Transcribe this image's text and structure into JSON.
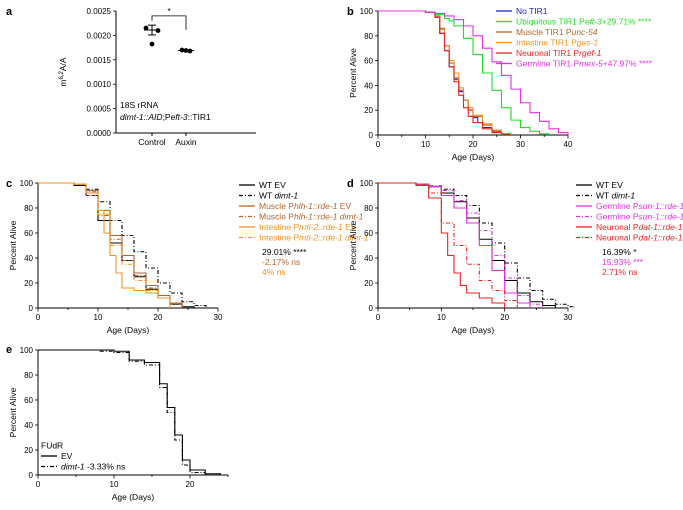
{
  "colors": {
    "black": "#000000",
    "blue": "#1f25c8",
    "green": "#27d92a",
    "brown": "#b5652c",
    "orange": "#f39322",
    "red": "#ee2222",
    "magenta": "#e331e0",
    "grey": "#555555"
  },
  "chart_data": [
    {
      "id": "a",
      "panel_label": "a",
      "type": "scatter",
      "ylabel": "m6,2A/A",
      "ylabel_base": "m",
      "ylabel_sup": "6,2",
      "ylabel_rest": "A/A",
      "ylim": [
        0,
        0.0025
      ],
      "yticks": [
        "0.0025",
        "0.0020",
        "0.0015",
        "0.0010",
        "0.0005",
        "0.0000"
      ],
      "ytick_values": [
        0.0025,
        0.002,
        0.0015,
        0.001,
        0.0005,
        0
      ],
      "categories": [
        "Control",
        "Auxin"
      ],
      "points": [
        [
          0.00215,
          0.0021,
          0.00182
        ],
        [
          0.0017,
          0.00169,
          0.00168
        ]
      ],
      "means": [
        0.00211,
        0.00169
      ],
      "sem": [
        0.0001,
        5e-06
      ],
      "significance": "*",
      "annotation_line1": "18S rRNA",
      "annotation_line2_italic": "dimt-1::AID",
      "annotation_line2_rest": ";Peft-3::TIR1",
      "annotation_line2_p": "P",
      "annotation_line2_eft": "eft-3",
      "annotation_line2_tail": "::TIR1"
    },
    {
      "id": "b",
      "panel_label": "b",
      "type": "line",
      "xlabel": "Age (Days)",
      "ylabel": "Percent Alive",
      "xlim": [
        0,
        40
      ],
      "ylim": [
        0,
        100
      ],
      "xticks": [
        0,
        10,
        20,
        30,
        40
      ],
      "yticks": [
        0,
        20,
        40,
        60,
        80,
        100
      ],
      "series": [
        {
          "name": "No TIR1",
          "color": "blue",
          "x": [
            0,
            10,
            12,
            13,
            14,
            15,
            16,
            17,
            18,
            19,
            20,
            21,
            22,
            24,
            26,
            28
          ],
          "y": [
            100,
            99,
            95,
            82,
            68,
            55,
            45,
            35,
            28,
            20,
            14,
            10,
            6,
            3,
            1,
            0
          ]
        },
        {
          "name": "Ubiquitous TIR1 Peft-3",
          "color": "green",
          "x": [
            0,
            10,
            12,
            14,
            15,
            16,
            18,
            20,
            22,
            24,
            26,
            28,
            30,
            32,
            34,
            36
          ],
          "y": [
            100,
            99,
            97,
            94,
            92,
            88,
            78,
            65,
            50,
            36,
            22,
            12,
            6,
            3,
            1,
            0
          ]
        },
        {
          "name": "Muscle TIR1 Punc-54",
          "color": "brown",
          "x": [
            0,
            10,
            12,
            13,
            14,
            15,
            16,
            17,
            18,
            19,
            20,
            22,
            24,
            26,
            28
          ],
          "y": [
            100,
            99,
            96,
            86,
            72,
            58,
            46,
            36,
            28,
            20,
            15,
            8,
            3,
            1,
            0
          ]
        },
        {
          "name": "Intestine TIR1 Pges-1",
          "color": "orange",
          "x": [
            0,
            10,
            12,
            13,
            14,
            15,
            16,
            17,
            18,
            19,
            20,
            22,
            24,
            26,
            28
          ],
          "y": [
            100,
            99,
            96,
            85,
            72,
            60,
            50,
            38,
            28,
            22,
            16,
            9,
            4,
            1,
            0
          ]
        },
        {
          "name": "Neuronal TIR1 Prgef-1",
          "color": "red",
          "x": [
            0,
            10,
            12,
            13,
            14,
            15,
            16,
            17,
            18,
            19,
            20,
            22,
            24,
            26
          ],
          "y": [
            100,
            99,
            95,
            82,
            68,
            55,
            43,
            32,
            22,
            15,
            10,
            5,
            2,
            0
          ]
        },
        {
          "name": "Germline TIR1 Pmex-5",
          "color": "magenta",
          "x": [
            0,
            10,
            12,
            14,
            16,
            18,
            20,
            22,
            24,
            26,
            28,
            30,
            32,
            34,
            36,
            38,
            40
          ],
          "y": [
            100,
            99,
            98,
            96,
            93,
            88,
            80,
            70,
            59,
            48,
            37,
            26,
            18,
            11,
            5,
            2,
            0
          ]
        }
      ],
      "legend": [
        {
          "pre": "No TIR1",
          "ital": "",
          "post": "",
          "stat": "",
          "color": "blue"
        },
        {
          "pre": "Ubiquitous TIR1 P",
          "ital": "eft-3",
          "post": "",
          "stat": "+29.71% ****",
          "color": "green"
        },
        {
          "pre": "Muscle TIR1 P",
          "ital": "unc-54",
          "post": "",
          "stat": "",
          "color": "brown"
        },
        {
          "pre": "Intestine TIR1 P",
          "ital": "ges-1",
          "post": "",
          "stat": "",
          "color": "orange"
        },
        {
          "pre": "Neuronal TIR1 P",
          "ital": "rgef-1",
          "post": "",
          "stat": "",
          "color": "red"
        },
        {
          "pre": "Germline TIR1 P",
          "ital": "mex-5",
          "post": "",
          "stat": "+47.97% ****",
          "color": "magenta"
        }
      ]
    },
    {
      "id": "c",
      "panel_label": "c",
      "type": "line",
      "xlabel": "Age (Days)",
      "ylabel": "Percent Alive",
      "xlim": [
        0,
        30
      ],
      "ylim": [
        0,
        100
      ],
      "xticks": [
        0,
        10,
        20,
        30
      ],
      "yticks": [
        0,
        20,
        40,
        60,
        80,
        100
      ],
      "series": [
        {
          "name": "WT EV",
          "color": "black",
          "dash": "",
          "x": [
            0,
            6,
            8,
            10,
            12,
            14,
            16,
            18,
            20,
            22,
            24,
            26
          ],
          "y": [
            100,
            98,
            90,
            70,
            52,
            38,
            25,
            15,
            8,
            3,
            1,
            0
          ]
        },
        {
          "name": "WT dimt-1",
          "color": "black",
          "dash": "4,2,1,2",
          "x": [
            0,
            6,
            8,
            10,
            12,
            14,
            16,
            18,
            20,
            22,
            24,
            26,
            28
          ],
          "y": [
            100,
            99,
            95,
            85,
            70,
            58,
            45,
            32,
            20,
            12,
            5,
            2,
            0
          ]
        },
        {
          "name": "Muscle Phlh-1::rde-1 EV",
          "color": "brown",
          "dash": "",
          "x": [
            0,
            6,
            8,
            10,
            12,
            14,
            16,
            18,
            20,
            22,
            24
          ],
          "y": [
            100,
            99,
            94,
            78,
            58,
            42,
            28,
            18,
            10,
            4,
            0
          ]
        },
        {
          "name": "Muscle Phlh-1::rde-1 dimt-1",
          "color": "brown",
          "dash": "4,2,1,2",
          "x": [
            0,
            6,
            8,
            10,
            12,
            14,
            16,
            18,
            20,
            22,
            24
          ],
          "y": [
            100,
            99,
            93,
            74,
            55,
            38,
            26,
            16,
            8,
            3,
            0
          ]
        },
        {
          "name": "Intestine Pmtl-2::rde-1 EV",
          "color": "orange",
          "dash": "",
          "x": [
            0,
            6,
            8,
            10,
            11,
            12,
            13,
            14,
            16,
            18,
            20,
            22
          ],
          "y": [
            100,
            99,
            92,
            78,
            60,
            42,
            28,
            16,
            14,
            12,
            8,
            0
          ]
        },
        {
          "name": "Intestine Pmtl-2::rde-1 dimt-1",
          "color": "orange",
          "dash": "4,2,1,2",
          "x": [
            0,
            6,
            8,
            10,
            12,
            14,
            16,
            18,
            20,
            22
          ],
          "y": [
            100,
            99,
            90,
            75,
            50,
            35,
            22,
            14,
            8,
            0
          ]
        }
      ],
      "legend": [
        {
          "pre": "WT EV",
          "ital": "",
          "post": "",
          "color": "black",
          "dash": ""
        },
        {
          "pre": "WT ",
          "ital": "dimt-1",
          "post": "",
          "color": "black",
          "dash": "4,2,1,2"
        },
        {
          "pre": "Muscle P",
          "ital": "hlh-1::rde-1",
          "post": " EV",
          "color": "brown",
          "dash": ""
        },
        {
          "pre": "Muscle P",
          "ital": "hlh-1::rde-1 dimt-1",
          "post": "",
          "color": "brown",
          "dash": "4,2,1,2"
        },
        {
          "pre": "Intestine P",
          "ital": "mtl-2::rde-1",
          "post": " EV",
          "color": "orange",
          "dash": ""
        },
        {
          "pre": "Intestine P",
          "ital": "mtl-2::rde-1 dimt-1",
          "post": "",
          "color": "orange",
          "dash": "4,2,1,2"
        }
      ],
      "stats": [
        {
          "text": "29.01% ****",
          "color": "black"
        },
        {
          "text": "-2.17% ns",
          "color": "brown"
        },
        {
          "text": "4% ns",
          "color": "orange"
        }
      ]
    },
    {
      "id": "d",
      "panel_label": "d",
      "type": "line",
      "xlabel": "Age (Days)",
      "ylabel": "Percent Alive",
      "xlim": [
        0,
        30
      ],
      "ylim": [
        0,
        100
      ],
      "xticks": [
        0,
        10,
        20,
        30
      ],
      "yticks": [
        0,
        20,
        40,
        60,
        80,
        100
      ],
      "series": [
        {
          "name": "WT EV",
          "color": "black",
          "dash": "",
          "x": [
            0,
            6,
            8,
            10,
            12,
            14,
            16,
            18,
            20,
            22,
            24,
            26,
            28
          ],
          "y": [
            100,
            99,
            97,
            92,
            85,
            72,
            55,
            38,
            22,
            12,
            5,
            2,
            0
          ]
        },
        {
          "name": "WT dimt-1",
          "color": "black",
          "dash": "4,2,1,2",
          "x": [
            0,
            6,
            8,
            10,
            12,
            14,
            16,
            18,
            20,
            22,
            24,
            26,
            28,
            30,
            31
          ],
          "y": [
            100,
            99,
            98,
            95,
            90,
            82,
            68,
            52,
            36,
            24,
            14,
            7,
            3,
            1,
            0
          ]
        },
        {
          "name": "Germline Psun-1::rde-1 EV",
          "color": "magenta",
          "dash": "",
          "x": [
            0,
            6,
            8,
            10,
            12,
            14,
            16,
            18,
            20,
            22,
            24
          ],
          "y": [
            100,
            99,
            97,
            90,
            80,
            68,
            50,
            30,
            12,
            4,
            0
          ]
        },
        {
          "name": "Germline Psun-1::rde-1 dimt-1",
          "color": "magenta",
          "dash": "4,2,1,2",
          "x": [
            0,
            6,
            8,
            10,
            12,
            14,
            16,
            18,
            20,
            22,
            24,
            26
          ],
          "y": [
            100,
            99,
            98,
            94,
            86,
            76,
            62,
            42,
            24,
            10,
            3,
            0
          ]
        },
        {
          "name": "Neuronal Pdat-1::rde-1 EV",
          "color": "red",
          "dash": "",
          "x": [
            0,
            6,
            8,
            10,
            11,
            12,
            13,
            14,
            16,
            18,
            20
          ],
          "y": [
            100,
            98,
            88,
            60,
            42,
            28,
            18,
            12,
            8,
            4,
            0
          ]
        },
        {
          "name": "Neuronal Pdat-1::rde-1 dimt-1",
          "color": "red",
          "dash": "4,2,1,2",
          "x": [
            0,
            6,
            8,
            10,
            12,
            14,
            16,
            18,
            20,
            22
          ],
          "y": [
            100,
            99,
            92,
            68,
            50,
            35,
            22,
            14,
            6,
            0
          ]
        }
      ],
      "legend": [
        {
          "pre": "WT EV",
          "ital": "",
          "post": "",
          "color": "black",
          "dash": ""
        },
        {
          "pre": "WT ",
          "ital": "dimt-1",
          "post": "",
          "color": "black",
          "dash": "4,2,1,2"
        },
        {
          "pre": "Germline P",
          "ital": "sun-1::rde-1",
          "post": " EV",
          "color": "magenta",
          "dash": ""
        },
        {
          "pre": "Germline P",
          "ital": "sun-1::rde-1 dimt-1",
          "post": "",
          "color": "magenta",
          "dash": "4,2,1,2"
        },
        {
          "pre": "Neuronal P",
          "ital": "dat-1::rde-1",
          "post": " EV",
          "color": "red",
          "dash": ""
        },
        {
          "pre": "Neuronal P",
          "ital": "dat-1::rde-1 dimt-1",
          "post": "",
          "color": "red",
          "dash": "4,2,1,2"
        }
      ],
      "stats": [
        {
          "text": "16.39% *",
          "color": "black"
        },
        {
          "text": "15.93% ***",
          "color": "magenta"
        },
        {
          "text": "2.71% ns",
          "color": "red"
        }
      ]
    },
    {
      "id": "e",
      "panel_label": "e",
      "type": "line",
      "xlabel": "Age (Days)",
      "ylabel": "Percent Alive",
      "xlim": [
        0,
        25
      ],
      "ylim": [
        0,
        100
      ],
      "xticks": [
        0,
        10,
        20
      ],
      "yticks": [
        0,
        20,
        40,
        60,
        80,
        100
      ],
      "series": [
        {
          "name": "EV",
          "color": "black",
          "dash": "",
          "x": [
            0,
            8,
            10,
            12,
            14,
            16,
            17,
            18,
            19,
            20,
            22,
            24
          ],
          "y": [
            100,
            100,
            99,
            92,
            90,
            73,
            54,
            32,
            12,
            4,
            1,
            0
          ]
        },
        {
          "name": "dimt-1",
          "color": "black",
          "dash": "4,2,1,2",
          "x": [
            0,
            8,
            10,
            12,
            14,
            16,
            17,
            18,
            19,
            20,
            22
          ],
          "y": [
            100,
            99,
            98,
            91,
            88,
            70,
            50,
            28,
            8,
            2,
            0
          ]
        }
      ],
      "legend_title": "FUdR",
      "legend": [
        {
          "pre": "EV",
          "ital": "",
          "post": "",
          "color": "black",
          "dash": ""
        },
        {
          "pre": "",
          "ital": "dimt-1",
          "post": " -3.33% ns",
          "color": "black",
          "dash": "4,2,1,2"
        }
      ]
    }
  ]
}
